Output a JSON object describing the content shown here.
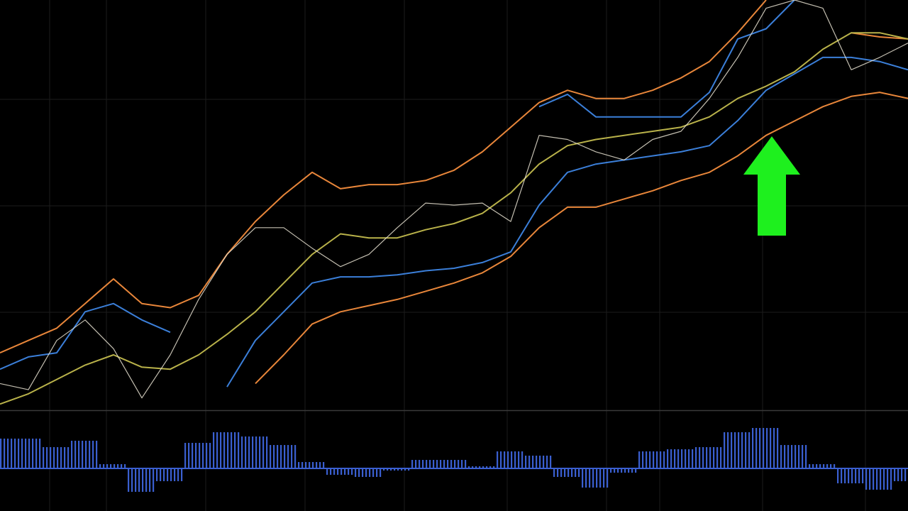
{
  "chart_data": [
    {
      "type": "line",
      "x": [
        0,
        40,
        80,
        120,
        160,
        200,
        240,
        280,
        320,
        360,
        400,
        440,
        480,
        520,
        560,
        600,
        640,
        680,
        720,
        760,
        800,
        840,
        880,
        920,
        960,
        1000,
        1040,
        1080,
        1120,
        1160,
        1200,
        1240,
        1280
      ],
      "xlim": [
        0,
        1280
      ],
      "ylim": [
        0,
        100
      ],
      "series": [
        {
          "color": "#e8863a",
          "values": [
            14,
            17,
            20,
            26,
            32,
            26,
            25,
            28,
            38,
            46,
            52.5,
            58,
            54,
            55,
            55,
            56,
            58.5,
            63,
            69,
            75,
            78,
            76,
            76,
            78,
            81,
            85,
            92,
            100,
            null,
            null,
            92,
            91,
            90.5
          ]
        },
        {
          "color": "#3b7fd9",
          "values": [
            10,
            13,
            14,
            24,
            26,
            22,
            19,
            null,
            null,
            null,
            null,
            null,
            null,
            null,
            null,
            null,
            null,
            null,
            null,
            74,
            77,
            71.5,
            71.5,
            71.5,
            71.5,
            77.5,
            90.5,
            93,
            100,
            null,
            null,
            null,
            null
          ]
        },
        {
          "color": "#3b7fd9",
          "values": [
            null,
            null,
            null,
            null,
            null,
            null,
            null,
            null,
            5.7,
            17,
            24,
            31,
            32.5,
            32.5,
            33,
            34,
            34.6,
            36,
            38.6,
            50,
            58,
            60,
            61,
            62,
            63,
            64.5,
            70.6,
            78,
            82,
            86,
            86,
            85,
            83
          ]
        },
        {
          "color": "#e8863a",
          "values": [
            null,
            null,
            null,
            null,
            null,
            null,
            null,
            null,
            null,
            6.5,
            13.5,
            21,
            24,
            25.5,
            27,
            29,
            31,
            33.5,
            37.5,
            44.5,
            49.5,
            49.5,
            51.5,
            53.5,
            56,
            58,
            62,
            67,
            70.5,
            74,
            76.5,
            77.5,
            76
          ]
        },
        {
          "color": "#b9b24a",
          "values": [
            1.5,
            4,
            7.5,
            11,
            13.5,
            10.5,
            10,
            13.5,
            18.5,
            24,
            31,
            38,
            43,
            42,
            42,
            44,
            45.5,
            48,
            53,
            60,
            64.5,
            66,
            67,
            68,
            69,
            71.5,
            76,
            79,
            82.5,
            88,
            92,
            92,
            90.5
          ]
        },
        {
          "color": "#e6e0d0",
          "values": [
            6.5,
            5,
            17,
            22,
            15,
            3,
            13.5,
            27,
            38,
            44.5,
            44.5,
            39.5,
            35,
            38,
            44.5,
            50.5,
            50,
            50.5,
            46,
            67,
            66,
            63,
            61,
            66,
            68,
            76,
            86,
            98,
            100,
            98,
            83,
            86,
            89.5
          ]
        }
      ]
    },
    {
      "type": "bar",
      "x": [
        0,
        40,
        80,
        120,
        160,
        200,
        240,
        280,
        320,
        360,
        400,
        440,
        480,
        520,
        560,
        600,
        640,
        680,
        720,
        760,
        800,
        840,
        880,
        920,
        960,
        1000,
        1040,
        1080,
        1120,
        1160,
        1200,
        1240,
        1280
      ],
      "xlim": [
        0,
        1280
      ],
      "ylim": [
        -1,
        1
      ],
      "color": "#3a5fd0",
      "values": [
        0.7,
        0.7,
        0.5,
        0.65,
        0.1,
        -0.55,
        -0.3,
        0.6,
        0.85,
        0.75,
        0.55,
        0.15,
        -0.15,
        -0.2,
        -0.05,
        0.2,
        0.2,
        0.05,
        0.4,
        0.3,
        -0.2,
        -0.45,
        -0.1,
        0.4,
        0.45,
        0.5,
        0.85,
        0.95,
        0.55,
        0.1,
        -0.35,
        -0.5,
        -0.3
      ]
    }
  ]
}
